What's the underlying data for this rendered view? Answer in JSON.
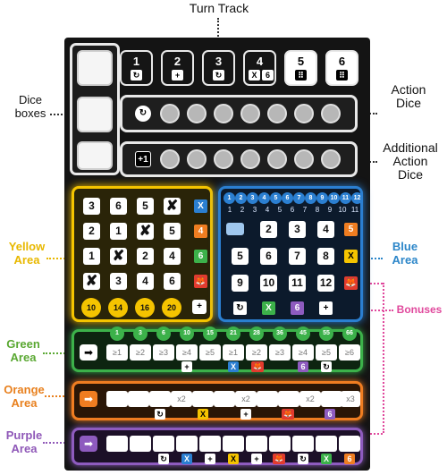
{
  "labels": {
    "turn_track": "Turn Track",
    "dice_boxes_line1": "Dice",
    "dice_boxes_line2": "boxes",
    "action_dice_line1": "Action",
    "action_dice_line2": "Dice",
    "additional_line1": "Additional",
    "additional_line2": "Action",
    "additional_line3": "Dice",
    "yellow_line1": "Yellow",
    "yellow_line2": "Area",
    "blue_line1": "Blue",
    "blue_line2": "Area",
    "bonuses": "Bonuses",
    "green_line1": "Green",
    "green_line2": "Area",
    "orange_line1": "Orange",
    "orange_line2": "Area",
    "purple_line1": "Purple",
    "purple_line2": "Area"
  },
  "colors": {
    "yellow": "#f5c400",
    "blue": "#2b7fd1",
    "green": "#3cb14a",
    "orange": "#ef7d21",
    "purple": "#8e5bbf",
    "pink": "#e0489c",
    "yellow_label": "#e8b800",
    "blue_label": "#2c86c9",
    "green_label": "#5aa832",
    "orange_label": "#e8801e",
    "purple_label": "#8f58b8"
  },
  "turn_track": {
    "rounds": [
      {
        "number": "1",
        "symbol": "↻",
        "style": "light"
      },
      {
        "number": "2",
        "symbol": "+",
        "style": "light"
      },
      {
        "number": "3",
        "symbol": "↻",
        "style": "light"
      },
      {
        "number": "4",
        "symbol": "X",
        "extra": "6",
        "style": "light"
      },
      {
        "number": "5",
        "symbol": "⠿",
        "style": "dark"
      },
      {
        "number": "6",
        "symbol": "⠿",
        "style": "dark"
      }
    ]
  },
  "action_dice": {
    "icon": "↻"
  },
  "additional_dice": {
    "icon": "+1"
  },
  "yellow": {
    "grid": [
      [
        "3",
        "6",
        "5",
        "✘"
      ],
      [
        "2",
        "1",
        "✘",
        "5"
      ],
      [
        "1",
        "✘",
        "2",
        "4"
      ],
      [
        "✘",
        "3",
        "4",
        "6"
      ]
    ],
    "row_rewards": [
      "X",
      "4",
      "6",
      "🦊"
    ],
    "col_rewards": [
      "10",
      "14",
      "16",
      "20"
    ],
    "corner": "+"
  },
  "blue": {
    "track": [
      "1",
      "2",
      "3",
      "4",
      "5",
      "6",
      "7",
      "8",
      "9",
      "10",
      "11",
      "12"
    ],
    "track_small": [
      "1",
      "2",
      "3",
      "4",
      "5",
      "6",
      "7",
      "8",
      "9",
      "10",
      "11"
    ],
    "grid": [
      [
        "",
        "2",
        "3",
        "4"
      ],
      [
        "5",
        "6",
        "7",
        "8"
      ],
      [
        "9",
        "10",
        "11",
        "12"
      ]
    ],
    "row_rewards": [
      "5",
      "X",
      "🦊"
    ],
    "col_rewards": [
      "↻",
      "X",
      "6",
      "+"
    ]
  },
  "green": {
    "thresholds": [
      "1",
      "3",
      "6",
      "10",
      "15",
      "21",
      "28",
      "36",
      "45",
      "55",
      "66"
    ],
    "cells": [
      "≥1",
      "≥2",
      "≥3",
      "≥4",
      "≥5",
      "≥1",
      "≥2",
      "≥3",
      "≥4",
      "≥5",
      "≥6"
    ],
    "rewards": [
      "+",
      "X",
      "🦊",
      "6",
      "↻"
    ]
  },
  "orange": {
    "cells": [
      "",
      "",
      "",
      "x2",
      "",
      "",
      "x2",
      "",
      "",
      "x2",
      "",
      "x3"
    ],
    "rewards": [
      "↻",
      "X",
      "+",
      "🦊",
      "6"
    ]
  },
  "purple": {
    "cells": [
      "",
      "",
      "",
      "",
      "",
      "",
      "",
      "",
      "",
      "",
      ""
    ],
    "rewards": [
      "↻",
      "X",
      "+",
      "X",
      "+",
      "🦊",
      "↻",
      "X",
      "6"
    ]
  }
}
